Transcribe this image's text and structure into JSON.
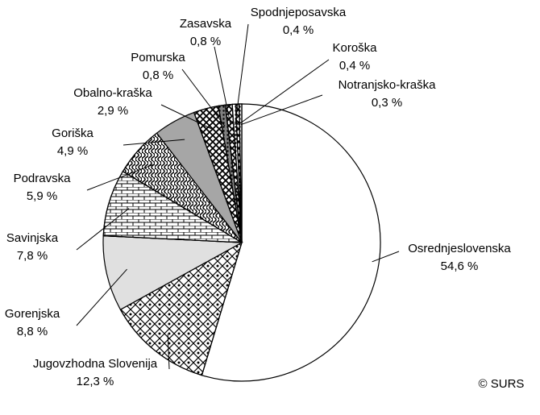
{
  "chart_data": {
    "type": "pie",
    "categories": [
      "Osrednjeslovenska",
      "Jugovzhodna Slovenija",
      "Gorenjska",
      "Savinjska",
      "Podravska",
      "Goriška",
      "Obalno-kraška",
      "Pomurska",
      "Zasavska",
      "Spodnjeposavska",
      "Koroška",
      "Notranjsko-kraška"
    ],
    "values": [
      54.6,
      12.3,
      8.8,
      7.8,
      5.9,
      4.9,
      2.9,
      0.8,
      0.8,
      0.4,
      0.4,
      0.3
    ],
    "value_labels": [
      "54,6 %",
      "12,3 %",
      "8,8 %",
      "7,8 %",
      "5,9 %",
      "4,9 %",
      "2,9 %",
      "0,8 %",
      "0,8 %",
      "0,4 %",
      "0,4 %",
      "0,3 %"
    ],
    "colors": [
      "#ffffff",
      "#ffffff",
      "#e0e0e0",
      "#ffffff",
      "#ffffff",
      "#a6a6a6",
      "#ffffff",
      "#808080",
      "#ffffff",
      "#ffffff",
      "#ffffff",
      "#ffffff"
    ],
    "source": "© SURS"
  }
}
